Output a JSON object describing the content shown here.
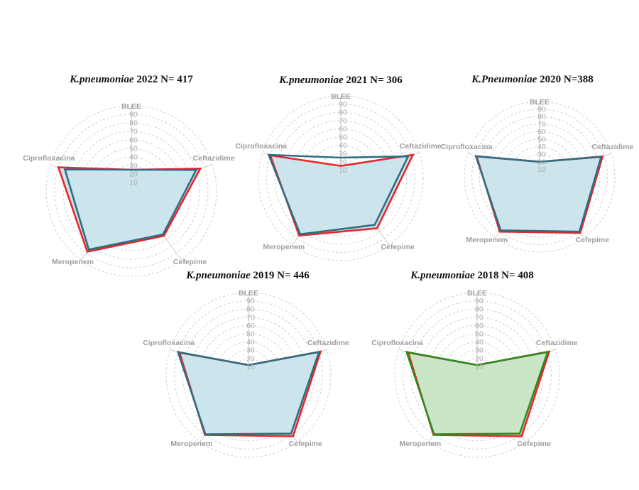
{
  "chart_data": [
    {
      "type": "radar",
      "title_org": "K.pneumoniae",
      "title_rest": " 2022 N= 417",
      "axes": [
        "BLEE",
        "Ceftazidime",
        "Cefepime",
        "Meropenem",
        "Ciprofloxacina"
      ],
      "ticks": [
        "10",
        "20",
        "30",
        "40",
        "50",
        "60",
        "70",
        "80",
        "90"
      ],
      "rlim": [
        0,
        100
      ],
      "fill_color": "#c9e3ea",
      "series": [
        {
          "values": [
            25,
            85,
            65,
            88,
            90
          ],
          "color": "#e8252a"
        },
        {
          "values": [
            25,
            80,
            63,
            85,
            82
          ],
          "color": "#2d6e82"
        }
      ]
    },
    {
      "type": "radar",
      "title_org": "K.pneumoniae",
      "title_rest": " 2021 N= 306",
      "axes": [
        "BLEE",
        "Ceftazidime",
        "Cefepime",
        "Meropenem",
        "Ciprofloxacina"
      ],
      "ticks": [
        "10",
        "20",
        "30",
        "40",
        "50",
        "60",
        "70",
        "80",
        "90"
      ],
      "rlim": [
        0,
        100
      ],
      "fill_color": "#c9e3ea",
      "series": [
        {
          "values": [
            15,
            92,
            75,
            86,
            90
          ],
          "color": "#e8252a"
        },
        {
          "values": [
            25,
            86,
            70,
            84,
            92
          ],
          "color": "#2d6e82"
        }
      ]
    },
    {
      "type": "radar",
      "title_org": "K.Pneumoniae",
      "title_rest": " 2020 N=388",
      "axes": [
        "BLEE",
        "Ceftazidime",
        "Cefepime",
        "Meropenem",
        "Ciprofloxacina"
      ],
      "ticks": [
        "10",
        "20",
        "30",
        "40",
        "50",
        "60",
        "70",
        "80",
        "90"
      ],
      "rlim": [
        0,
        100
      ],
      "fill_color": "#c9e3ea",
      "series": [
        {
          "values": [
            20,
            88,
            92,
            90,
            88
          ],
          "color": "#e8252a"
        },
        {
          "values": [
            20,
            86,
            90,
            88,
            89
          ],
          "color": "#2d6e82"
        }
      ]
    },
    {
      "type": "radar",
      "title_org": "K.pneumoniae",
      "title_rest": "  2019 N= 446",
      "axes": [
        "BLEE",
        "Ceftazidime",
        "Cefepime",
        "Meropenem",
        "Ciprofloxacina"
      ],
      "ticks": [
        "10",
        "20",
        "30",
        "40",
        "50",
        "60",
        "70",
        "80",
        "90"
      ],
      "rlim": [
        0,
        100
      ],
      "fill_color": "#c9e3ea",
      "series": [
        {
          "values": [
            12,
            92,
            92,
            90,
            88
          ],
          "color": "#e8252a"
        },
        {
          "values": [
            12,
            90,
            88,
            89,
            90
          ],
          "color": "#2d6e82"
        }
      ]
    },
    {
      "type": "radar",
      "title_org": "K.pneumoniae",
      "title_rest": "  2018 N= 408",
      "axes": [
        "BLEE",
        "Ceftazidime",
        "Cefepime",
        "Meropenem",
        "Ciprofloxacina"
      ],
      "ticks": [
        "10",
        "20",
        "30",
        "40",
        "50",
        "60",
        "70",
        "80",
        "90"
      ],
      "rlim": [
        0,
        100
      ],
      "fill_color": "#c8e5c3",
      "series": [
        {
          "values": [
            12,
            92,
            92,
            90,
            88
          ],
          "color": "#e8252a"
        },
        {
          "values": [
            12,
            90,
            88,
            89,
            90
          ],
          "color": "#2e8b22"
        }
      ]
    }
  ]
}
